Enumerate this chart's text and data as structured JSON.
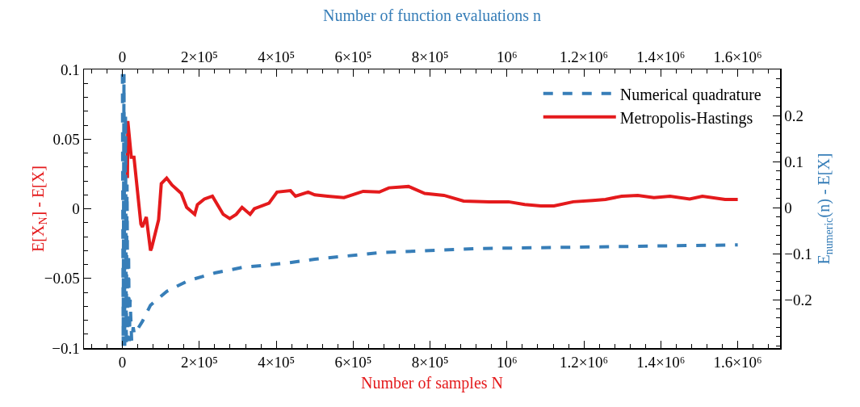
{
  "chart_data": {
    "type": "line",
    "xlabel": "Number of samples N",
    "x2label": "Number of function evaluations n",
    "ylabel": "E[X$_{N}$] - E[X]",
    "y2label": "E$_{numeric}$(n) - E[X]",
    "xlim": [
      -100000,
      1710000
    ],
    "xticks": [
      0,
      {
        "value": 200000,
        "label": "2×10⁵"
      },
      {
        "value": 400000,
        "label": "4×10⁵"
      },
      {
        "value": 600000,
        "label": "6×10⁵"
      },
      {
        "value": 800000,
        "label": "8×10⁵"
      },
      {
        "value": 1000000,
        "label": "10⁶"
      },
      {
        "value": 1200000,
        "label": "1.2×10⁶"
      },
      {
        "value": 1400000,
        "label": "1.4×10⁶"
      },
      {
        "value": 1600000,
        "label": "1.6×10⁶"
      }
    ],
    "x2lim": [
      -100000,
      1710000
    ],
    "x2ticks": [
      0,
      {
        "value": 200000,
        "label": "2×10⁵"
      },
      {
        "value": 400000,
        "label": "4×10⁵"
      },
      {
        "value": 600000,
        "label": "6×10⁵"
      },
      {
        "value": 800000,
        "label": "8×10⁵"
      },
      {
        "value": 1000000,
        "label": "10⁶"
      },
      {
        "value": 1200000,
        "label": "1.2×10⁶"
      },
      {
        "value": 1400000,
        "label": "1.4×10⁶"
      },
      {
        "value": 1600000,
        "label": "1.6×10⁶"
      }
    ],
    "ylim": [
      -0.1,
      0.1
    ],
    "yticks": [
      {
        "value": -0.1,
        "label": "−0.1"
      },
      {
        "value": -0.05,
        "label": "−0.05"
      },
      0,
      0.05,
      0.1
    ],
    "y2lim": [
      -0.305,
      0.3
    ],
    "y2ticks": [
      {
        "value": -0.2,
        "label": "−0.2"
      },
      {
        "value": -0.1,
        "label": "−0.1"
      },
      0,
      0.1,
      0.2
    ],
    "grid": false,
    "legend": "top right",
    "marker": "none",
    "series": [
      {
        "name": "Numerical quadrature",
        "color": "#377eb8",
        "axis": "y2",
        "line_style": "dashed",
        "x": [
          0,
          2000,
          4000,
          6000,
          8000,
          10000,
          12000,
          14000,
          16000,
          18000,
          20000,
          24000,
          28000,
          31000,
          52000,
          73000,
          115000,
          170000,
          240000,
          311000,
          422000,
          500000,
          668000,
          920000,
          1172000,
          1424000,
          1600000
        ],
        "values": [
          0.29,
          -0.3,
          0.29,
          -0.3,
          0.2,
          -0.3,
          0.05,
          -0.29,
          -0.1,
          -0.29,
          -0.2,
          -0.29,
          -0.26,
          -0.275,
          -0.247,
          -0.212,
          -0.182,
          -0.159,
          -0.142,
          -0.13,
          -0.121,
          -0.112,
          -0.098,
          -0.089,
          -0.086,
          -0.083,
          -0.081
        ]
      },
      {
        "name": "Metropolis-Hastings",
        "color": "#e41a1c",
        "line_style": "solid",
        "x": [
          13000,
          14000,
          23000,
          30000,
          48000,
          52000,
          62000,
          73000,
          76000,
          94000,
          101000,
          115000,
          129000,
          153000,
          167000,
          188000,
          195000,
          213000,
          234000,
          262000,
          279000,
          296000,
          311000,
          332000,
          343000,
          381000,
          402000,
          437000,
          450000,
          483000,
          500000,
          534000,
          576000,
          626000,
          668000,
          693000,
          744000,
          786000,
          836000,
          887000,
          954000,
          1004000,
          1046000,
          1088000,
          1122000,
          1172000,
          1223000,
          1256000,
          1298000,
          1340000,
          1382000,
          1424000,
          1475000,
          1508000,
          1567000,
          1600000
        ],
        "values": [
          0.022,
          0.063,
          0.037,
          0.037,
          -0.011,
          -0.013,
          -0.006,
          -0.03,
          -0.028,
          -0.008,
          0.018,
          0.022,
          0.017,
          0.011,
          0.001,
          -0.004,
          0.003,
          0.007,
          0.009,
          -0.004,
          -0.007,
          -0.004,
          0.001,
          -0.004,
          0.0,
          0.004,
          0.012,
          0.013,
          0.009,
          0.012,
          0.01,
          0.009,
          0.008,
          0.0125,
          0.012,
          0.015,
          0.016,
          0.011,
          0.0096,
          0.0055,
          0.005,
          0.005,
          0.003,
          0.002,
          0.002,
          0.005,
          0.006,
          0.0067,
          0.009,
          0.0096,
          0.008,
          0.009,
          0.007,
          0.009,
          0.0067,
          0.0067
        ]
      }
    ]
  }
}
